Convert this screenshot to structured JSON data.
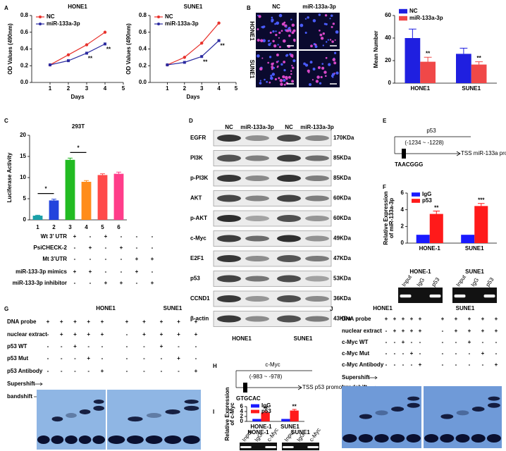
{
  "panels": {
    "letters": [
      "A",
      "B",
      "C",
      "D",
      "E",
      "F",
      "G",
      "H",
      "I",
      "J"
    ],
    "b_images": {
      "columns": [
        "NC",
        "miR-133a-3p"
      ],
      "rows": [
        "HONE1",
        "SUNE1"
      ]
    },
    "c_table": {
      "rows": [
        {
          "label": "Wt 3’ UTR",
          "signs": [
            "+",
            "-",
            "+",
            "-",
            "-",
            "-"
          ]
        },
        {
          "label": "PsiCHECK-2",
          "signs": [
            "-",
            "+",
            "-",
            "+",
            "-",
            "-"
          ]
        },
        {
          "label": "Mt 3’UTR",
          "signs": [
            "-",
            "-",
            "-",
            "-",
            "+",
            "+"
          ]
        },
        {
          "label": "miR-133-3p mimics",
          "signs": [
            "+",
            "+",
            "-",
            "-",
            "+",
            "-"
          ]
        },
        {
          "label": "miR-133-3p inhibitor",
          "signs": [
            "-",
            "-",
            "+",
            "+",
            "-",
            "+"
          ]
        }
      ]
    },
    "d_blot": {
      "columns": [
        "NC",
        "miR-133a-3p",
        "NC",
        "miR-133a-3p"
      ],
      "proteins": [
        {
          "name": "EGFR",
          "size": "170KDa"
        },
        {
          "name": "PI3K",
          "size": "85KDa"
        },
        {
          "name": "p-PI3K",
          "size": "85KDa"
        },
        {
          "name": "AKT",
          "size": "60KDa"
        },
        {
          "name": "p-AKT",
          "size": "60KDa"
        },
        {
          "name": "c-Myc",
          "size": "49KDa"
        },
        {
          "name": "E2F1",
          "size": "47KDa"
        },
        {
          "name": "p53",
          "size": "53KDa"
        },
        {
          "name": "CCND1",
          "size": "36KDa"
        },
        {
          "name": "β-actin",
          "size": "43KDa"
        }
      ],
      "cells": [
        "HONE1",
        "SUNE1"
      ]
    },
    "e_diagram": {
      "factor": "p53",
      "site": "(-1234 ~ -1228)",
      "promoter": "TSS miR-133a promoter",
      "motif": "TAACGGG"
    },
    "f_gel": {
      "groups": [
        {
          "name": "HONE-1",
          "lanes": [
            "Input",
            "IgG",
            "p53"
          ]
        },
        {
          "name": "SUNE1",
          "lanes": [
            "Input",
            "IgG",
            "p53"
          ]
        }
      ]
    },
    "g_emsa": {
      "cells": [
        "HONE1",
        "SUNE1"
      ],
      "rows": [
        {
          "label": "DNA probe",
          "signs": [
            "+",
            "+",
            "+",
            "+",
            "+",
            "+",
            "+",
            "+",
            "+",
            "+"
          ]
        },
        {
          "label": "nuclear extract",
          "signs": [
            "-",
            "+",
            "+",
            "+",
            "+",
            "-",
            "+",
            "+",
            "+",
            "+"
          ]
        },
        {
          "label": "p53 WT",
          "signs": [
            "-",
            "-",
            "+",
            "-",
            "-",
            "-",
            "-",
            "+",
            "-",
            "-"
          ]
        },
        {
          "label": "p53 Mut",
          "signs": [
            "-",
            "-",
            "-",
            "+",
            "-",
            "-",
            "-",
            "-",
            "+",
            "-"
          ]
        },
        {
          "label": "p53 Antibody",
          "signs": [
            "-",
            "-",
            "-",
            "-",
            "+",
            "-",
            "-",
            "-",
            "-",
            "+"
          ]
        }
      ],
      "bands": [
        "Supershift",
        "bandshift"
      ]
    },
    "h_diagram": {
      "factor": "c-Myc",
      "site": "(-983 ~ -978)",
      "promoter": "TSS p53 promoter",
      "motif": "GTGCAC"
    },
    "i_gel": {
      "groups": [
        {
          "name": "HONE-1",
          "lanes": [
            "Input",
            "IgG",
            "c-Myc"
          ]
        },
        {
          "name": "SUNE1",
          "lanes": [
            "Input",
            "IgG",
            "c-Myc"
          ]
        }
      ]
    },
    "j_emsa": {
      "cells": [
        "HONE1",
        "SUNE1"
      ],
      "rows": [
        {
          "label": "DNA probe",
          "signs": [
            "+",
            "+",
            "+",
            "+",
            "+",
            "+",
            "+",
            "+",
            "+",
            "+"
          ]
        },
        {
          "label": "nuclear extract",
          "signs": [
            "-",
            "+",
            "+",
            "+",
            "+",
            "-",
            "+",
            "+",
            "+",
            "+"
          ]
        },
        {
          "label": "c-Myc WT",
          "signs": [
            "-",
            "-",
            "+",
            "-",
            "-",
            "-",
            "-",
            "+",
            "-",
            "-"
          ]
        },
        {
          "label": "c-Myc Mut",
          "signs": [
            "-",
            "-",
            "-",
            "+",
            "-",
            "-",
            "-",
            "-",
            "+",
            "-"
          ]
        },
        {
          "label": "c-Myc Antibody",
          "signs": [
            "-",
            "-",
            "-",
            "-",
            "+",
            "-",
            "-",
            "-",
            "-",
            "+"
          ]
        }
      ],
      "bands": [
        "Supershift",
        "bandshift"
      ]
    }
  },
  "chart_data": [
    {
      "type": "line",
      "title": "HONE1",
      "x_label": "Days",
      "y_label": "OD Values (490nm)",
      "x": [
        1,
        2,
        3,
        4
      ],
      "xlim": [
        0,
        5
      ],
      "xticks": [
        1,
        2,
        3,
        4,
        5
      ],
      "ylim": [
        0,
        0.8
      ],
      "yticks": [
        {
          "value": 0,
          "label": "0.0"
        },
        0.2,
        0.4,
        0.6,
        0.8
      ],
      "series": [
        {
          "name": "NC",
          "color": "#e8322c",
          "values": [
            0.21,
            0.33,
            0.45,
            0.6
          ]
        },
        {
          "name": "miR-133a-3p",
          "color": "#2b2ba0",
          "values": [
            0.21,
            0.26,
            0.35,
            0.46
          ]
        }
      ],
      "annotations": [
        {
          "text": "**",
          "x": 3
        },
        {
          "text": "**",
          "x": 4
        }
      ]
    },
    {
      "type": "line",
      "title": "SUNE1",
      "x_label": "Days",
      "y_label": "OD Values (490nm)",
      "x": [
        1,
        2,
        3,
        4
      ],
      "xlim": [
        0,
        5
      ],
      "xticks": [
        1,
        2,
        3,
        4,
        5
      ],
      "ylim": [
        0,
        0.8
      ],
      "yticks": [
        {
          "value": 0,
          "label": "0.0"
        },
        0.2,
        0.4,
        0.6,
        0.8
      ],
      "series": [
        {
          "name": "NC",
          "color": "#e8322c",
          "values": [
            0.21,
            0.3,
            0.47,
            0.71
          ]
        },
        {
          "name": "miR-133a-3p",
          "color": "#2b2ba0",
          "values": [
            0.21,
            0.24,
            0.31,
            0.5
          ]
        }
      ],
      "annotations": [
        {
          "text": "**",
          "x": 3
        },
        {
          "text": "**",
          "x": 4
        }
      ]
    },
    {
      "type": "bar",
      "y_label": "Mean Number",
      "categories": [
        "HONE1",
        "SUNE1"
      ],
      "ylim": [
        0,
        60
      ],
      "yticks": [
        0,
        20,
        40,
        60
      ],
      "series": [
        {
          "name": "NC",
          "color": "#1f1fe0",
          "values": [
            40,
            26
          ],
          "errors": [
            8,
            5
          ]
        },
        {
          "name": "miR-133a-3p",
          "color": "#f04848",
          "values": [
            19,
            16.5
          ],
          "errors": [
            4,
            2.5
          ],
          "significance": [
            "**",
            "**"
          ]
        }
      ]
    },
    {
      "type": "bar",
      "title": "293T",
      "y_label": "Luciferase Activity",
      "categories": [
        "1",
        "2",
        "3",
        "4",
        "5",
        "6"
      ],
      "values": [
        1.0,
        4.6,
        14.2,
        9.0,
        10.6,
        10.9
      ],
      "errors": [
        0.1,
        0.3,
        0.4,
        0.3,
        0.3,
        0.4
      ],
      "colors": [
        "#1aa0a8",
        "#2244dd",
        "#22bb22",
        "#ff8c1a",
        "#ff4a4a",
        "#ff3d8a"
      ],
      "ylim": [
        0,
        20
      ],
      "yticks": [
        0,
        5,
        10,
        15,
        20
      ],
      "brackets": [
        {
          "text": "*",
          "categories": [
            "1",
            "2"
          ]
        },
        {
          "text": "*",
          "categories": [
            "3",
            "4"
          ]
        }
      ]
    },
    {
      "type": "bar",
      "y_label": [
        "Relative Expression",
        "of miR-133a-3p"
      ],
      "categories": [
        "HONE-1",
        "SUNE1"
      ],
      "ylim": [
        0,
        6
      ],
      "yticks": [
        0,
        2,
        4,
        6
      ],
      "series": [
        {
          "name": "IgG",
          "color": "#1a1aff",
          "values": [
            1,
            1
          ]
        },
        {
          "name": "p53",
          "color": "#ff1a1a",
          "values": [
            3.5,
            4.45
          ],
          "errors": [
            0.35,
            0.3
          ],
          "significance": [
            "**",
            "***"
          ]
        }
      ]
    },
    {
      "type": "bar",
      "y_label": [
        "Relative Expression",
        "of c-Myc"
      ],
      "categories": [
        "HONE-1",
        "SUNE1"
      ],
      "ylim": [
        0,
        6
      ],
      "yticks": [
        0,
        2,
        4,
        6
      ],
      "series": [
        {
          "name": "IgG",
          "color": "#1a1aff",
          "values": [
            1,
            1
          ]
        },
        {
          "name": "p53",
          "color": "#ff1a1a",
          "values": [
            3.6,
            4.4
          ],
          "errors": [
            0.4,
            0.45
          ],
          "significance": [
            "**",
            "**"
          ]
        }
      ]
    }
  ]
}
